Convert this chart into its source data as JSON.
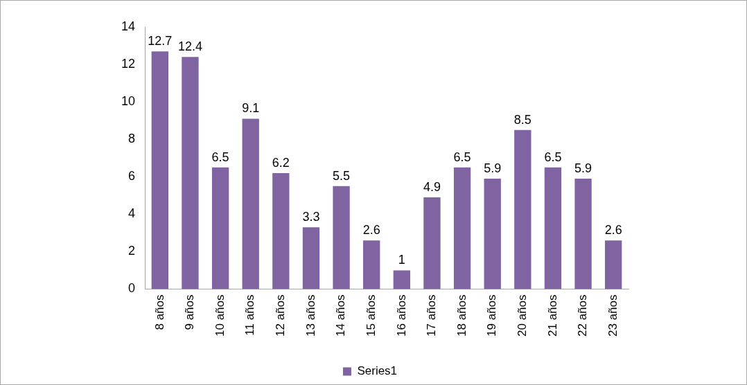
{
  "chart_data": {
    "type": "bar",
    "categories": [
      "8 años",
      "9 años",
      "10 años",
      "11 años",
      "12 años",
      "13 años",
      "14 años",
      "15 años",
      "16 años",
      "17 años",
      "18 años",
      "19 años",
      "20 años",
      "21 años",
      "22 años",
      "23 años"
    ],
    "series": [
      {
        "name": "Series1",
        "color": "#8064a2",
        "values": [
          12.7,
          12.4,
          6.5,
          9.1,
          6.2,
          3.3,
          5.5,
          2.6,
          1,
          4.9,
          6.5,
          5.9,
          8.5,
          6.5,
          5.9,
          2.6
        ]
      }
    ],
    "ylim": [
      0,
      14
    ],
    "yticks": [
      0,
      2,
      4,
      6,
      8,
      10,
      12,
      14
    ],
    "data_labels": true,
    "legend": "bottom"
  }
}
